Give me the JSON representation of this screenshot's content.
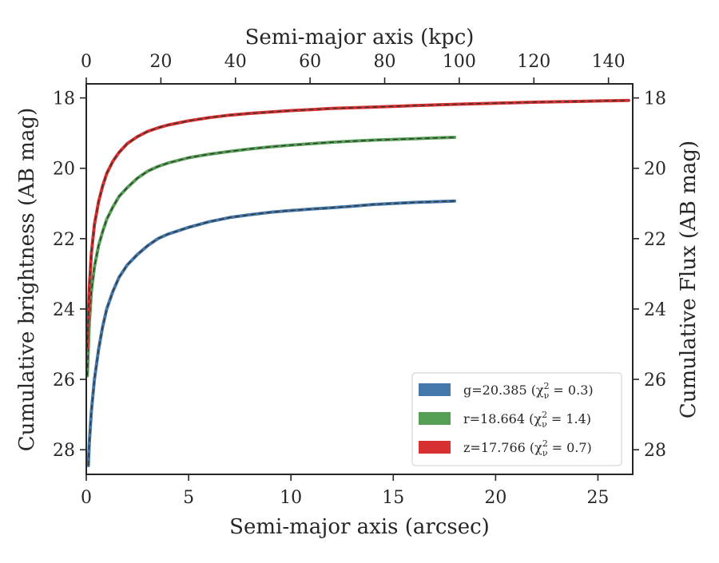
{
  "chart_data": {
    "type": "line",
    "xlabel": "Semi-major axis (arcsec)",
    "ylabel": "Cumulative brightness (AB mag)",
    "ylabel_right": "Cumulative Flux (AB mag)",
    "xlabel_top": "Semi-major axis (kpc)",
    "xlim": [
      0,
      26.7
    ],
    "ylim": [
      28.7,
      17.6
    ],
    "y_inverted": true,
    "xlim_top": [
      0,
      146.5
    ],
    "x_ticks": [
      "0",
      "5",
      "10",
      "15",
      "20",
      "25"
    ],
    "x_tick_values": [
      0,
      5,
      10,
      15,
      20,
      25
    ],
    "x_top_ticks": [
      "0",
      "20",
      "40",
      "60",
      "80",
      "100",
      "120",
      "140"
    ],
    "x_top_tick_values": [
      0,
      20,
      40,
      60,
      80,
      100,
      120,
      140
    ],
    "y_ticks": [
      "18",
      "20",
      "22",
      "24",
      "26",
      "28"
    ],
    "y_tick_values": [
      18,
      20,
      22,
      24,
      26,
      28
    ],
    "grid": false,
    "legend_position": "lower-right",
    "series": [
      {
        "name": "g=20.385",
        "chi_label": "(χ",
        "chi_sub": "ν",
        "chi_sup": "2",
        "chi_value": " = 0.3)",
        "color": "#4477aa",
        "x": [
          0.1,
          0.15,
          0.25,
          0.4,
          0.6,
          0.8,
          1.0,
          1.3,
          1.6,
          2.0,
          2.5,
          3.0,
          3.5,
          4.0,
          5.0,
          6.0,
          7.0,
          8.0,
          9.0,
          10.0,
          11.0,
          12.0,
          13.0,
          14.0,
          15.0,
          16.0,
          17.0,
          18.0
        ],
        "y": [
          28.45,
          27.8,
          26.9,
          26.0,
          25.15,
          24.5,
          24.0,
          23.5,
          23.1,
          22.75,
          22.45,
          22.2,
          22.0,
          21.87,
          21.68,
          21.52,
          21.4,
          21.32,
          21.25,
          21.2,
          21.16,
          21.12,
          21.08,
          21.03,
          21.0,
          20.97,
          20.95,
          20.93
        ]
      },
      {
        "name": "r=18.664",
        "chi_label": "(χ",
        "chi_sub": "ν",
        "chi_sup": "2",
        "chi_value": " = 1.4)",
        "color": "#55a055",
        "x": [
          0.05,
          0.1,
          0.15,
          0.25,
          0.4,
          0.6,
          0.8,
          1.0,
          1.3,
          1.6,
          2.0,
          2.5,
          3.0,
          3.5,
          4.0,
          5.0,
          6.0,
          7.0,
          8.0,
          9.0,
          10.0,
          11.0,
          12.0,
          13.0,
          14.0,
          15.0,
          16.0,
          17.0,
          18.0
        ],
        "y": [
          25.9,
          25.1,
          24.4,
          23.5,
          22.8,
          22.2,
          21.8,
          21.45,
          21.1,
          20.8,
          20.55,
          20.28,
          20.08,
          19.95,
          19.85,
          19.7,
          19.6,
          19.52,
          19.45,
          19.39,
          19.34,
          19.3,
          19.26,
          19.23,
          19.2,
          19.18,
          19.16,
          19.14,
          19.12
        ]
      },
      {
        "name": "z=17.766",
        "chi_label": "(χ",
        "chi_sub": "ν",
        "chi_sup": "2",
        "chi_value": " = 0.7)",
        "color": "#d63030",
        "x": [
          0.05,
          0.1,
          0.15,
          0.25,
          0.4,
          0.6,
          0.8,
          1.0,
          1.3,
          1.6,
          2.0,
          2.5,
          3.0,
          3.5,
          4.0,
          5.0,
          6.0,
          7.0,
          8.0,
          9.0,
          10.0,
          11.0,
          12.0,
          14.0,
          16.0,
          18.0,
          20.0,
          22.0,
          24.0,
          26.5
        ],
        "y": [
          25.1,
          24.2,
          23.4,
          22.4,
          21.6,
          20.95,
          20.5,
          20.15,
          19.8,
          19.55,
          19.3,
          19.1,
          18.95,
          18.85,
          18.77,
          18.65,
          18.56,
          18.49,
          18.44,
          18.4,
          18.36,
          18.33,
          18.3,
          18.26,
          18.22,
          18.18,
          18.15,
          18.12,
          18.1,
          18.07
        ]
      }
    ]
  }
}
